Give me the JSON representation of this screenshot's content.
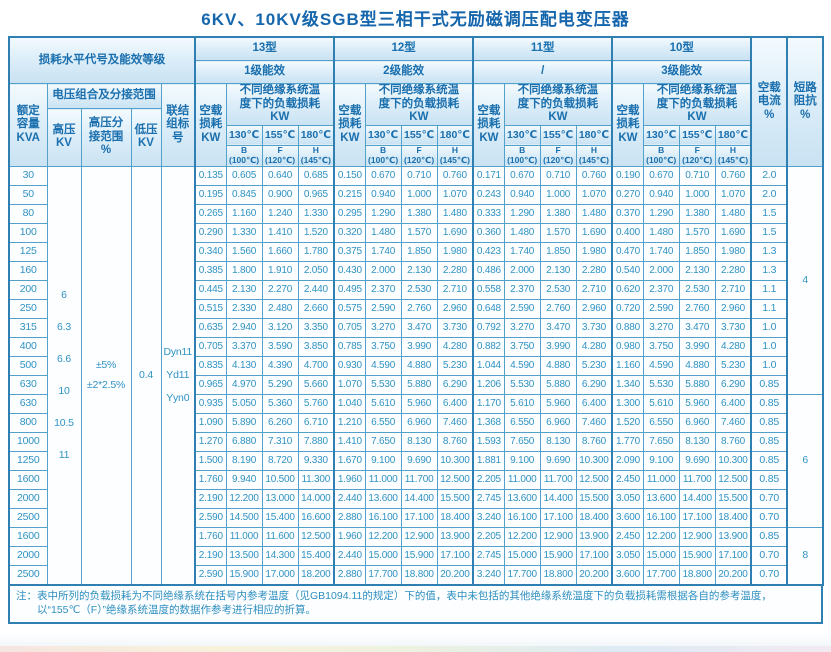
{
  "title": "6KV、10KV级SGB型三相干式无励磁调压配电变压器",
  "header": {
    "loss_level": "损耗水平代号及能效等级",
    "types": [
      {
        "name": "13型",
        "efficiency": "1级能效"
      },
      {
        "name": "12型",
        "efficiency": "2级能效"
      },
      {
        "name": "11型",
        "efficiency": "/"
      },
      {
        "name": "10型",
        "efficiency": "3级能效"
      }
    ],
    "rated_capacity": "额定\n容量\nKVA",
    "voltage_combo": "电压组合及分接范围",
    "hv": "高压\nKV",
    "hv_tap": "高压分\n接范围\n%",
    "lv": "低压\nKV",
    "vector_group": "联结\n组标\n号",
    "no_load_loss": "空载\n损耗\nKW",
    "load_loss": "不同绝缘系统温\n度下的负载损耗\nKW",
    "temps": [
      "130℃",
      "155℃",
      "180℃"
    ],
    "temp_subs": [
      "B\n(100℃)",
      "F\n(120℃)",
      "H\n(145℃)"
    ],
    "no_load_current": "空载\n电流\n%",
    "impedance": "短路\n阻抗\n%"
  },
  "table": {
    "merged": {
      "hv": "6\n6.3\n6.6\n10\n10.5\n11",
      "tap": "±5%\n±2*2.5%",
      "lv": "0.4",
      "vector": "Dyn11\nYd11\nYyn0"
    },
    "impedance_groups": [
      {
        "value": "4",
        "start": 0,
        "span": 12
      },
      {
        "value": "6",
        "start": 12,
        "span": 7
      },
      {
        "value": "8",
        "start": 19,
        "span": 3
      }
    ],
    "rows": [
      {
        "kva": "30",
        "values": [
          "0.135",
          "0.605",
          "0.640",
          "0.685",
          "0.150",
          "0.670",
          "0.710",
          "0.760",
          "0.171",
          "0.670",
          "0.710",
          "0.760",
          "0.190",
          "0.670",
          "0.710",
          "0.760"
        ],
        "current": "2.0"
      },
      {
        "kva": "50",
        "values": [
          "0.195",
          "0.845",
          "0.900",
          "0.965",
          "0.215",
          "0.940",
          "1.000",
          "1.070",
          "0.243",
          "0.940",
          "1.000",
          "1.070",
          "0.270",
          "0.940",
          "1.000",
          "1.070"
        ],
        "current": "2.0"
      },
      {
        "kva": "80",
        "values": [
          "0.265",
          "1.160",
          "1.240",
          "1.330",
          "0.295",
          "1.290",
          "1.380",
          "1.480",
          "0.333",
          "1.290",
          "1.380",
          "1.480",
          "0.370",
          "1.290",
          "1.380",
          "1.480"
        ],
        "current": "1.5"
      },
      {
        "kva": "100",
        "values": [
          "0.290",
          "1.330",
          "1.410",
          "1.520",
          "0.320",
          "1.480",
          "1.570",
          "1.690",
          "0.360",
          "1.480",
          "1.570",
          "1.690",
          "0.400",
          "1.480",
          "1.570",
          "1.690"
        ],
        "current": "1.5"
      },
      {
        "kva": "125",
        "values": [
          "0.340",
          "1.560",
          "1.660",
          "1.780",
          "0.375",
          "1.740",
          "1.850",
          "1.980",
          "0.423",
          "1.740",
          "1.850",
          "1.980",
          "0.470",
          "1.740",
          "1.850",
          "1.980"
        ],
        "current": "1.3"
      },
      {
        "kva": "160",
        "values": [
          "0.385",
          "1.800",
          "1.910",
          "2.050",
          "0.430",
          "2.000",
          "2.130",
          "2.280",
          "0.486",
          "2.000",
          "2.130",
          "2.280",
          "0.540",
          "2.000",
          "2.130",
          "2.280"
        ],
        "current": "1.3"
      },
      {
        "kva": "200",
        "values": [
          "0.445",
          "2.130",
          "2.270",
          "2.440",
          "0.495",
          "2.370",
          "2.530",
          "2.710",
          "0.558",
          "2.370",
          "2.530",
          "2.710",
          "0.620",
          "2.370",
          "2.530",
          "2.710"
        ],
        "current": "1.1"
      },
      {
        "kva": "250",
        "values": [
          "0.515",
          "2.330",
          "2.480",
          "2.660",
          "0.575",
          "2.590",
          "2.760",
          "2.960",
          "0.648",
          "2.590",
          "2.760",
          "2.960",
          "0.720",
          "2.590",
          "2.760",
          "2.960"
        ],
        "current": "1.1"
      },
      {
        "kva": "315",
        "values": [
          "0.635",
          "2.940",
          "3.120",
          "3.350",
          "0.705",
          "3.270",
          "3.470",
          "3.730",
          "0.792",
          "3.270",
          "3.470",
          "3.730",
          "0.880",
          "3.270",
          "3.470",
          "3.730"
        ],
        "current": "1.0"
      },
      {
        "kva": "400",
        "values": [
          "0.705",
          "3.370",
          "3.590",
          "3.850",
          "0.785",
          "3.750",
          "3.990",
          "4.280",
          "0.882",
          "3.750",
          "3.990",
          "4.280",
          "0.980",
          "3.750",
          "3.990",
          "4.280"
        ],
        "current": "1.0"
      },
      {
        "kva": "500",
        "values": [
          "0.835",
          "4.130",
          "4.390",
          "4.700",
          "0.930",
          "4.590",
          "4.880",
          "5.230",
          "1.044",
          "4.590",
          "4.880",
          "5.230",
          "1.160",
          "4.590",
          "4.880",
          "5.230"
        ],
        "current": "1.0"
      },
      {
        "kva": "630",
        "values": [
          "0.965",
          "4.970",
          "5.290",
          "5.660",
          "1.070",
          "5.530",
          "5.880",
          "6.290",
          "1.206",
          "5.530",
          "5.880",
          "6.290",
          "1.340",
          "5.530",
          "5.880",
          "6.290"
        ],
        "current": "0.85"
      },
      {
        "kva": "630",
        "values": [
          "0.935",
          "5.050",
          "5.360",
          "5.760",
          "1.040",
          "5.610",
          "5.960",
          "6.400",
          "1.170",
          "5.610",
          "5.960",
          "6.400",
          "1.300",
          "5.610",
          "5.960",
          "6.400"
        ],
        "current": "0.85"
      },
      {
        "kva": "800",
        "values": [
          "1.090",
          "5.890",
          "6.260",
          "6.710",
          "1.210",
          "6.550",
          "6.960",
          "7.460",
          "1.368",
          "6.550",
          "6.960",
          "7.460",
          "1.520",
          "6.550",
          "6.960",
          "7.460"
        ],
        "current": "0.85"
      },
      {
        "kva": "1000",
        "values": [
          "1.270",
          "6.880",
          "7.310",
          "7.880",
          "1.410",
          "7.650",
          "8.130",
          "8.760",
          "1.593",
          "7.650",
          "8.130",
          "8.760",
          "1.770",
          "7.650",
          "8.130",
          "8.760"
        ],
        "current": "0.85"
      },
      {
        "kva": "1250",
        "values": [
          "1.500",
          "8.190",
          "8.720",
          "9.330",
          "1.670",
          "9.100",
          "9.690",
          "10.300",
          "1.881",
          "9.100",
          "9.690",
          "10.300",
          "2.090",
          "9.100",
          "9.690",
          "10.300"
        ],
        "current": "0.85"
      },
      {
        "kva": "1600",
        "values": [
          "1.760",
          "9.940",
          "10.500",
          "11.300",
          "1.960",
          "11.000",
          "11.700",
          "12.500",
          "2.205",
          "11.000",
          "11.700",
          "12.500",
          "2.450",
          "11.000",
          "11.700",
          "12.500"
        ],
        "current": "0.85"
      },
      {
        "kva": "2000",
        "values": [
          "2.190",
          "12.200",
          "13.000",
          "14.000",
          "2.440",
          "13.600",
          "14.400",
          "15.500",
          "2.745",
          "13.600",
          "14.400",
          "15.500",
          "3.050",
          "13.600",
          "14.400",
          "15.500"
        ],
        "current": "0.70"
      },
      {
        "kva": "2500",
        "values": [
          "2.590",
          "14.500",
          "15.400",
          "16.600",
          "2.880",
          "16.100",
          "17.100",
          "18.400",
          "3.240",
          "16.100",
          "17.100",
          "18.400",
          "3.600",
          "16.100",
          "17.100",
          "18.400"
        ],
        "current": "0.70"
      },
      {
        "kva": "1600",
        "values": [
          "1.760",
          "11.000",
          "11.600",
          "12.500",
          "1.960",
          "12.200",
          "12.900",
          "13.900",
          "2.205",
          "12.200",
          "12.900",
          "13.900",
          "2.450",
          "12.200",
          "12.900",
          "13.900"
        ],
        "current": "0.85"
      },
      {
        "kva": "2000",
        "values": [
          "2.190",
          "13.500",
          "14.300",
          "15.400",
          "2.440",
          "15.000",
          "15.900",
          "17.100",
          "2.745",
          "15.000",
          "15.900",
          "17.100",
          "3.050",
          "15.000",
          "15.900",
          "17.100"
        ],
        "current": "0.70"
      },
      {
        "kva": "2500",
        "values": [
          "2.590",
          "15.900",
          "17.000",
          "18.200",
          "2.880",
          "17.700",
          "18.800",
          "20.200",
          "3.240",
          "17.700",
          "18.800",
          "20.200",
          "3.600",
          "17.700",
          "18.800",
          "20.200"
        ],
        "current": "0.70"
      }
    ]
  },
  "note": {
    "prefix": "注：",
    "body": "表中所列的负载损耗为不同绝缘系统在括号内参考温度（见GB1094.11的规定）下的值，表中未包括的其他绝缘系统温度下的负载损耗需根据各自的参考温度，以“155℃（F）”绝缘系统温度的数据作参考进行相应的折算。"
  }
}
